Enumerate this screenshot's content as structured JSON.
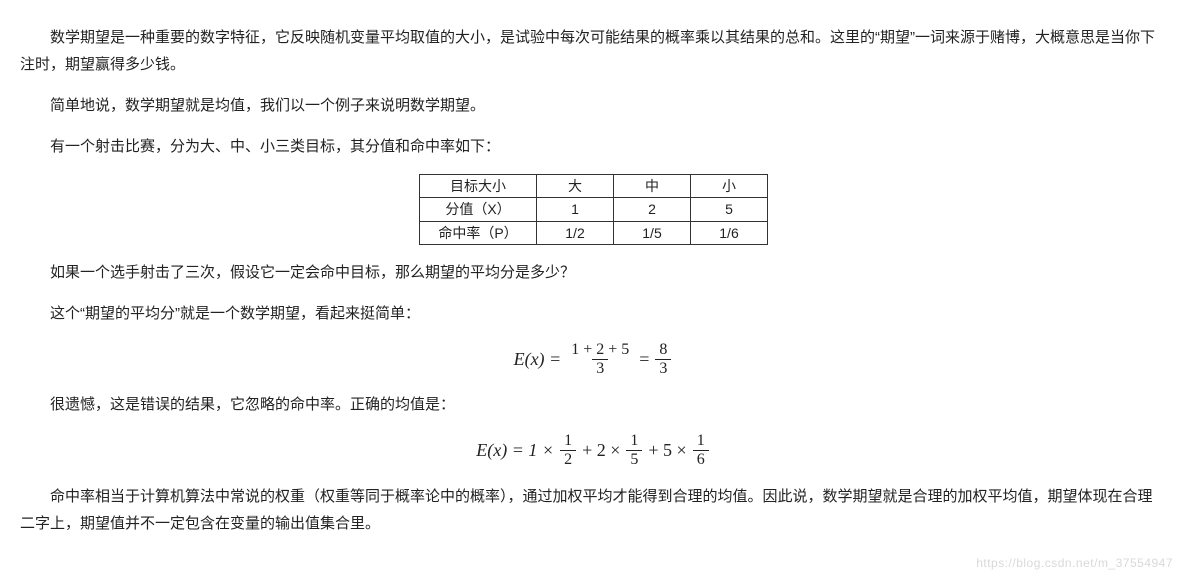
{
  "paragraphs": {
    "p1": "数学期望是一种重要的数字特征，它反映随机变量平均取值的大小，是试验中每次可能结果的概率乘以其结果的总和。这里的“期望”一词来源于赌博，大概意思是当你下注时，期望赢得多少钱。",
    "p2": "简单地说，数学期望就是均值，我们以一个例子来说明数学期望。",
    "p3": "有一个射击比赛，分为大、中、小三类目标，其分值和命中率如下：",
    "p4": "如果一个选手射击了三次，假设它一定会命中目标，那么期望的平均分是多少？",
    "p5": "这个“期望的平均分”就是一个数学期望，看起来挺简单：",
    "p6": "很遗憾，这是错误的结果，它忽略的命中率。正确的均值是：",
    "p7": "命中率相当于计算机算法中常说的权重（权重等同于概率论中的概率），通过加权平均才能得到合理的均值。因此说，数学期望就是合理的加权平均值，期望体现在合理二字上，期望值并不一定包含在变量的输出值集合里。"
  },
  "table": {
    "columns": [
      "目标大小",
      "大",
      "中",
      "小"
    ],
    "rows": [
      [
        "分值（X）",
        "1",
        "2",
        "5"
      ],
      [
        "命中率（P）",
        "1/2",
        "1/5",
        "1/6"
      ]
    ]
  },
  "formula1": {
    "lhs": "E(x) =",
    "f1_num": "1 + 2 + 5",
    "f1_den": "3",
    "eq": "=",
    "f2_num": "8",
    "f2_den": "3"
  },
  "formula2": {
    "lhs": "E(x) = 1 ×",
    "t1_num": "1",
    "t1_den": "2",
    "plus1": "+ 2 ×",
    "t2_num": "1",
    "t2_den": "5",
    "plus2": "+ 5 ×",
    "t3_num": "1",
    "t3_den": "6"
  },
  "watermark": "https://blog.csdn.net/m_37554947"
}
